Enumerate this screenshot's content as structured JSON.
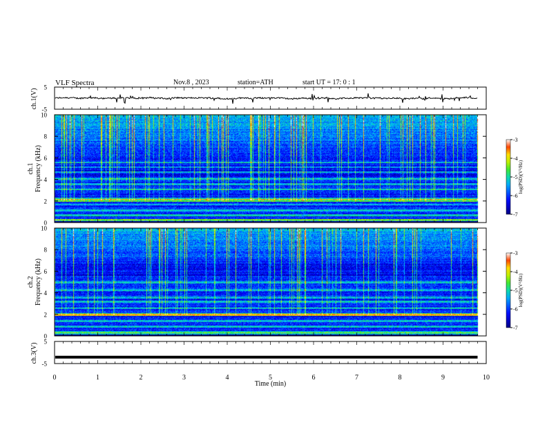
{
  "header": {
    "title": "VLF  Spectra",
    "date": "Nov.8  , 2023",
    "station": "station=ATH",
    "start": "start  UT  =    17: 0   : 1"
  },
  "chart_data": [
    {
      "type": "line",
      "ylabel": "ch.1(V)",
      "ylim": [
        -5,
        5
      ],
      "yticks": [
        "5",
        "-5"
      ],
      "x_range": [
        0,
        9.8
      ],
      "signal": {
        "mean": 0.0,
        "noise_amplitude": 0.6,
        "spike_amplitude": 2.2
      }
    },
    {
      "type": "heatmap",
      "ylabel_lines": [
        "ch.1",
        "Frequency  (kHz)"
      ],
      "ylim": [
        0,
        10
      ],
      "yticks": [
        "0",
        "2",
        "4",
        "6",
        "8",
        "10"
      ],
      "x_range": [
        0,
        9.8
      ],
      "colorbar": {
        "label": "log(PSD)(V²/Hz)",
        "ticks": [
          "-3",
          "-4",
          "-5",
          "-6",
          "-7"
        ]
      },
      "bands_khz": [
        0.3,
        0.7,
        1.15,
        1.7,
        2.25,
        3.1,
        3.6,
        4.1,
        4.7,
        5.15,
        5.6
      ],
      "bright_band_khz": 2.1,
      "dark_band_khz": [
        4.2,
        5.3
      ]
    },
    {
      "type": "heatmap",
      "ylabel_lines": [
        "ch.2",
        "Frequency  (kHz)"
      ],
      "ylim": [
        0,
        10
      ],
      "yticks": [
        "0",
        "2",
        "4",
        "6",
        "8",
        "10"
      ],
      "x_range": [
        0,
        9.8
      ],
      "colorbar": {
        "label": "log(PSD)(V²/Hz)",
        "ticks": [
          "-3",
          "-4",
          "-5",
          "-6",
          "-7"
        ]
      },
      "bands_khz": [
        0.4,
        0.9,
        1.4,
        2.0,
        2.6,
        3.2,
        3.6,
        4.3,
        5.0
      ],
      "bright_band_khz": 2.0,
      "dark_band_khz": [
        5.6,
        7.2
      ]
    },
    {
      "type": "line",
      "ylabel": "ch.3(V)",
      "ylim": [
        -5,
        5
      ],
      "yticks": [
        "5",
        "-5"
      ],
      "x_range": [
        0,
        9.8
      ],
      "signal": {
        "mean": -2.1,
        "noise_amplitude": 0.0,
        "spike_amplitude": 0.0
      }
    }
  ],
  "xaxis": {
    "label": "Time  (min)",
    "range": [
      0,
      10
    ],
    "ticks": [
      "0",
      "1",
      "2",
      "3",
      "4",
      "5",
      "6",
      "7",
      "8",
      "9",
      "10"
    ]
  }
}
